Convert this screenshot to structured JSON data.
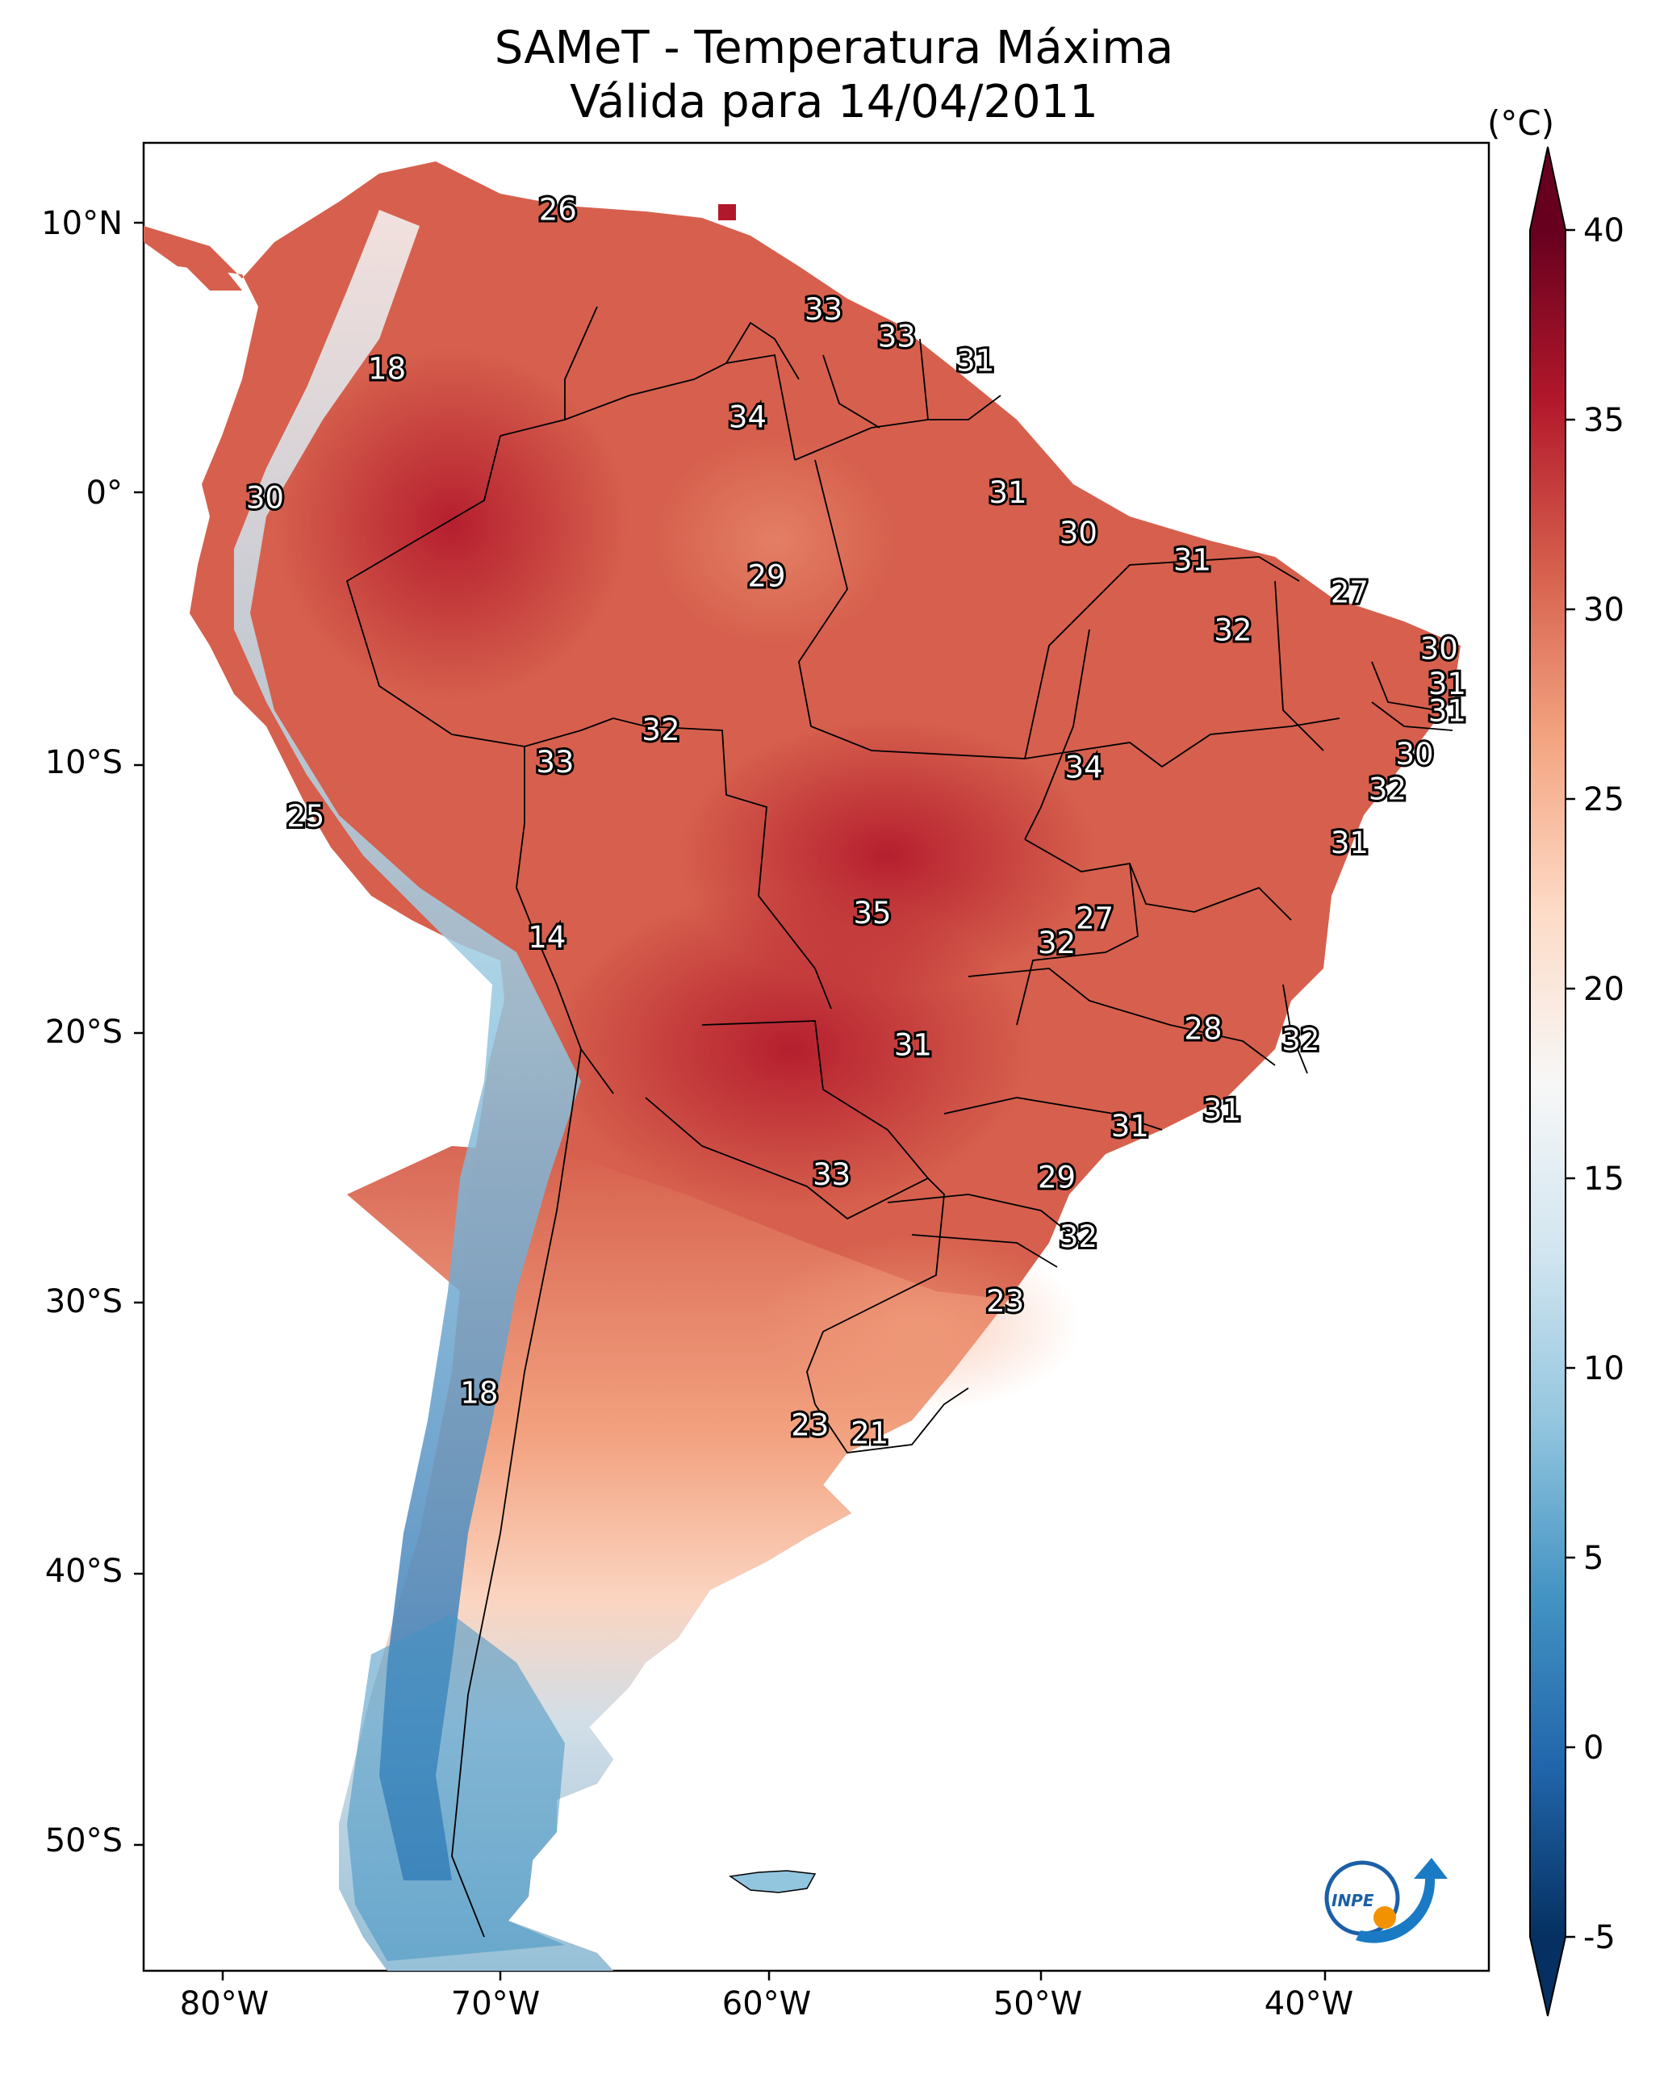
{
  "title_line1": "SAMeT - Temperatura Máxima",
  "title_line2": "Válida para 14/04/2011",
  "colorbar": {
    "unit": "(°C)",
    "min": -5,
    "max": 40,
    "ticks": [
      "40",
      "35",
      "30",
      "25",
      "20",
      "15",
      "10",
      "5",
      "0",
      "-5"
    ],
    "colors_low_to_high": [
      "#053061",
      "#2166ac",
      "#4393c3",
      "#92c5de",
      "#d1e5f0",
      "#f7f7f7",
      "#fddbc7",
      "#f4a582",
      "#d6604d",
      "#b2182b",
      "#67001f"
    ]
  },
  "axes": {
    "lon_labels": [
      "80°W",
      "70°W",
      "60°W",
      "50°W",
      "40°W"
    ],
    "lat_labels": [
      "10°N",
      "0°",
      "10°S",
      "20°S",
      "30°S",
      "40°S",
      "50°S"
    ]
  },
  "station_labels": [
    {
      "lon": -67.7,
      "lat": 10.5,
      "value": "26"
    },
    {
      "lon": -74.0,
      "lat": 4.6,
      "value": "18"
    },
    {
      "lon": -57.9,
      "lat": 6.8,
      "value": "33"
    },
    {
      "lon": -55.2,
      "lat": 5.8,
      "value": "33"
    },
    {
      "lon": -52.3,
      "lat": 4.9,
      "value": "31"
    },
    {
      "lon": -60.7,
      "lat": 2.8,
      "value": "34"
    },
    {
      "lon": -78.5,
      "lat": -0.2,
      "value": "30"
    },
    {
      "lon": -51.1,
      "lat": 0.0,
      "value": "31"
    },
    {
      "lon": -48.5,
      "lat": -1.5,
      "value": "30"
    },
    {
      "lon": -44.3,
      "lat": -2.5,
      "value": "31"
    },
    {
      "lon": -60.0,
      "lat": -3.1,
      "value": "29"
    },
    {
      "lon": -38.5,
      "lat": -3.7,
      "value": "27"
    },
    {
      "lon": -42.8,
      "lat": -5.1,
      "value": "32"
    },
    {
      "lon": -35.2,
      "lat": -5.8,
      "value": "30"
    },
    {
      "lon": -34.9,
      "lat": -7.1,
      "value": "31"
    },
    {
      "lon": -34.9,
      "lat": -8.1,
      "value": "31"
    },
    {
      "lon": -63.9,
      "lat": -8.8,
      "value": "32"
    },
    {
      "lon": -36.1,
      "lat": -9.7,
      "value": "30"
    },
    {
      "lon": -67.8,
      "lat": -10.0,
      "value": "33"
    },
    {
      "lon": -48.3,
      "lat": -10.2,
      "value": "34"
    },
    {
      "lon": -37.1,
      "lat": -11.0,
      "value": "32"
    },
    {
      "lon": -77.0,
      "lat": -12.0,
      "value": "25"
    },
    {
      "lon": -38.5,
      "lat": -13.0,
      "value": "31"
    },
    {
      "lon": -68.1,
      "lat": -16.5,
      "value": "14"
    },
    {
      "lon": -56.1,
      "lat": -15.6,
      "value": "35"
    },
    {
      "lon": -47.9,
      "lat": -15.8,
      "value": "27"
    },
    {
      "lon": -49.3,
      "lat": -16.7,
      "value": "32"
    },
    {
      "lon": -43.9,
      "lat": -19.9,
      "value": "28"
    },
    {
      "lon": -40.3,
      "lat": -20.3,
      "value": "32"
    },
    {
      "lon": -54.6,
      "lat": -20.5,
      "value": "31"
    },
    {
      "lon": -43.2,
      "lat": -22.9,
      "value": "31"
    },
    {
      "lon": -46.6,
      "lat": -23.5,
      "value": "31"
    },
    {
      "lon": -57.6,
      "lat": -25.3,
      "value": "33"
    },
    {
      "lon": -49.3,
      "lat": -25.4,
      "value": "29"
    },
    {
      "lon": -48.5,
      "lat": -27.6,
      "value": "32"
    },
    {
      "lon": -51.2,
      "lat": -30.0,
      "value": "23"
    },
    {
      "lon": -70.6,
      "lat": -33.4,
      "value": "18"
    },
    {
      "lon": -58.4,
      "lat": -34.6,
      "value": "23"
    },
    {
      "lon": -56.2,
      "lat": -34.9,
      "value": "21"
    }
  ]
}
